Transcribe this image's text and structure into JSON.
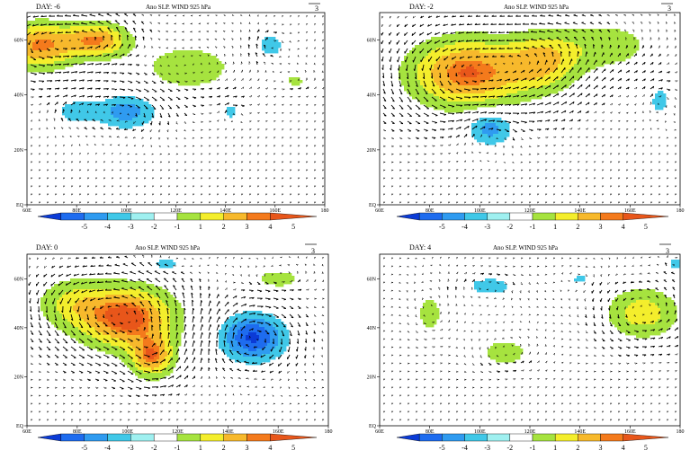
{
  "chart_data": [
    {
      "type": "heatmap",
      "panel": "top-left",
      "title_left": "DAY: -6",
      "title": "Ano SLP. WIND 925 hPa",
      "ref_vector": "3",
      "x_ticks": [
        "60E",
        "80E",
        "100E",
        "120E",
        "140E",
        "160E",
        "180"
      ],
      "y_ticks": [
        "EQ",
        "20N",
        "40N",
        "60N"
      ],
      "xlim": [
        60,
        180
      ],
      "ylim": [
        0,
        70
      ],
      "anomalies": [
        {
          "lon": 65,
          "lat": 58,
          "value": 4.2,
          "r_lon": 14,
          "r_lat": 8
        },
        {
          "lon": 88,
          "lat": 60,
          "value": 4.0,
          "r_lon": 12,
          "r_lat": 6
        },
        {
          "lon": 125,
          "lat": 50,
          "value": 1.5,
          "r_lon": 22,
          "r_lat": 10
        },
        {
          "lon": 100,
          "lat": 34,
          "value": -2.6,
          "r_lon": 12,
          "r_lat": 6
        },
        {
          "lon": 80,
          "lat": 34,
          "value": -1.8,
          "r_lon": 8,
          "r_lat": 4
        },
        {
          "lon": 142,
          "lat": 34,
          "value": -1.6,
          "r_lon": 3,
          "r_lat": 3
        },
        {
          "lon": 158,
          "lat": 58,
          "value": -2.0,
          "r_lon": 5,
          "r_lat": 4
        },
        {
          "lon": 168,
          "lat": 45,
          "value": 1.2,
          "r_lon": 6,
          "r_lat": 3
        }
      ]
    },
    {
      "type": "heatmap",
      "panel": "top-right",
      "title_left": "DAY: -2",
      "title": "Ano SLP. WIND 925 hPa",
      "ref_vector": "3",
      "x_ticks": [
        "60E",
        "80E",
        "100E",
        "120E",
        "140E",
        "160E",
        "180"
      ],
      "y_ticks": [
        "EQ",
        "20N",
        "40N",
        "60N"
      ],
      "xlim": [
        60,
        180
      ],
      "ylim": [
        0,
        70
      ],
      "anomalies": [
        {
          "lon": 95,
          "lat": 48,
          "value": 4.6,
          "r_lon": 22,
          "r_lat": 12
        },
        {
          "lon": 125,
          "lat": 52,
          "value": 3.0,
          "r_lon": 14,
          "r_lat": 10
        },
        {
          "lon": 150,
          "lat": 58,
          "value": 1.6,
          "r_lon": 20,
          "r_lat": 9
        },
        {
          "lon": 104,
          "lat": 28,
          "value": -2.6,
          "r_lon": 9,
          "r_lat": 6
        },
        {
          "lon": 172,
          "lat": 38,
          "value": -1.6,
          "r_lon": 4,
          "r_lat": 5
        }
      ]
    },
    {
      "type": "heatmap",
      "panel": "bottom-left",
      "title_left": "DAY: 0",
      "title": "Ano SLP. WIND 925 hPa",
      "ref_vector": "3",
      "x_ticks": [
        "60E",
        "80E",
        "100E",
        "120E",
        "140E",
        "160E",
        "180"
      ],
      "y_ticks": [
        "EQ",
        "20N",
        "40N",
        "60N"
      ],
      "xlim": [
        60,
        180
      ],
      "ylim": [
        0,
        70
      ],
      "anomalies": [
        {
          "lon": 100,
          "lat": 44,
          "value": 5.0,
          "r_lon": 18,
          "r_lat": 12
        },
        {
          "lon": 110,
          "lat": 28,
          "value": 4.0,
          "r_lon": 8,
          "r_lat": 8
        },
        {
          "lon": 78,
          "lat": 50,
          "value": 2.0,
          "r_lon": 14,
          "r_lat": 10
        },
        {
          "lon": 150,
          "lat": 36,
          "value": -4.2,
          "r_lon": 12,
          "r_lat": 9
        },
        {
          "lon": 160,
          "lat": 60,
          "value": 1.6,
          "r_lon": 10,
          "r_lat": 4
        },
        {
          "lon": 115,
          "lat": 66,
          "value": -1.4,
          "r_lon": 8,
          "r_lat": 3
        }
      ]
    },
    {
      "type": "heatmap",
      "panel": "bottom-right",
      "title_left": "DAY: 4",
      "title": "Ano SLP. WIND 925 hPa",
      "ref_vector": "3",
      "x_ticks": [
        "60E",
        "80E",
        "100E",
        "120E",
        "140E",
        "160E",
        "180"
      ],
      "y_ticks": [
        "EQ",
        "20N",
        "40N",
        "60N"
      ],
      "xlim": [
        60,
        180
      ],
      "ylim": [
        0,
        70
      ],
      "anomalies": [
        {
          "lon": 165,
          "lat": 46,
          "value": 2.6,
          "r_lon": 14,
          "r_lat": 10
        },
        {
          "lon": 110,
          "lat": 30,
          "value": 1.6,
          "r_lon": 10,
          "r_lat": 6
        },
        {
          "lon": 80,
          "lat": 46,
          "value": 1.4,
          "r_lon": 6,
          "r_lat": 10
        },
        {
          "lon": 104,
          "lat": 57,
          "value": -1.6,
          "r_lon": 10,
          "r_lat": 4
        },
        {
          "lon": 140,
          "lat": 60,
          "value": -1.2,
          "r_lon": 5,
          "r_lat": 3
        },
        {
          "lon": 178,
          "lat": 66,
          "value": -1.4,
          "r_lon": 3,
          "r_lat": 3
        }
      ]
    }
  ],
  "colorbar": {
    "labels": [
      "-5",
      "-4",
      "-3",
      "-2",
      "-1",
      "1",
      "2",
      "3",
      "4",
      "5"
    ],
    "colors": [
      "#0b3bd6",
      "#1e6cef",
      "#2f9bf0",
      "#40c8e8",
      "#9ff0f0",
      "#ffffff",
      "#a6e33f",
      "#f4ee2c",
      "#f7b92c",
      "#f47a1c",
      "#e8561a"
    ]
  }
}
